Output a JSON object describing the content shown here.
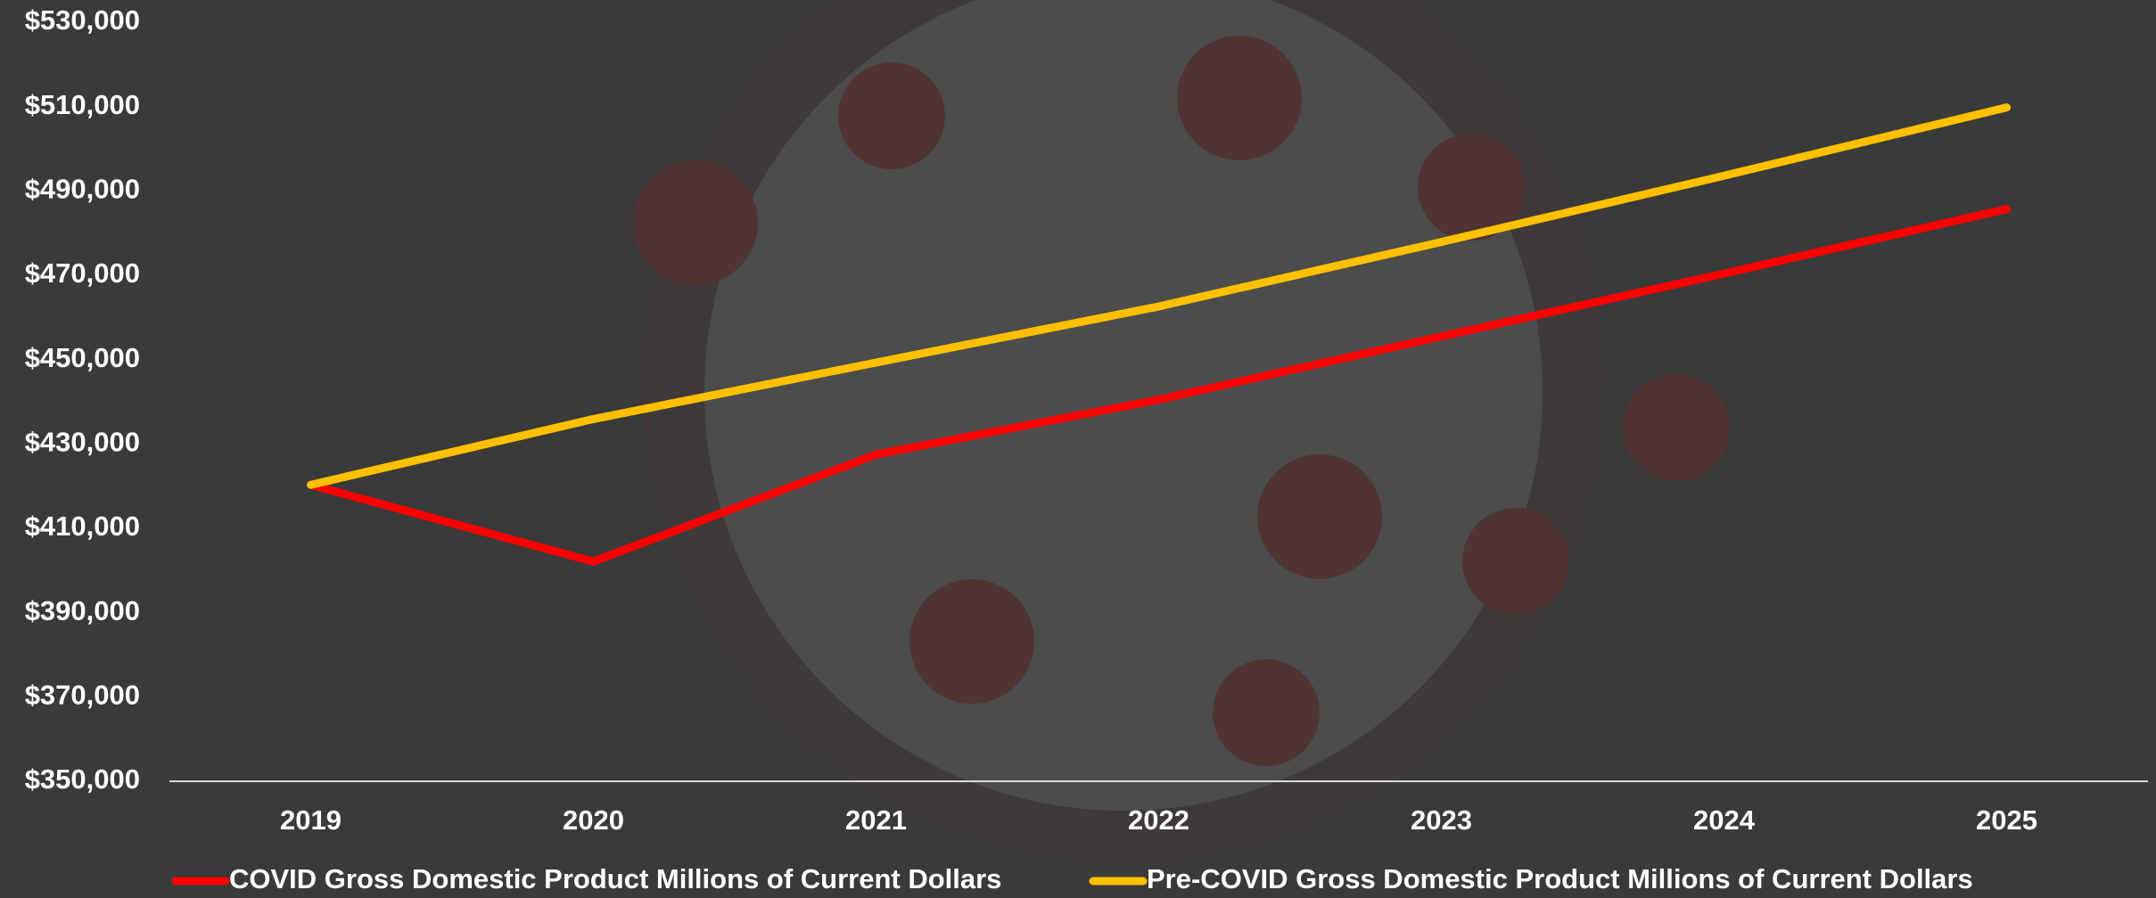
{
  "chart_data": {
    "type": "line",
    "categories": [
      "2019",
      "2020",
      "2021",
      "2022",
      "2023",
      "2024",
      "2025"
    ],
    "series": [
      {
        "name": "COVID Gross Domestic Product Millions of Current Dollars",
        "color": "#ff0000",
        "values": [
          420300,
          402100,
          427500,
          440500,
          455500,
          470400,
          485700
        ]
      },
      {
        "name": "Pre-COVID Gross Domestic Product Millions of Current Dollars",
        "color": "#ffc000",
        "values": [
          420300,
          435900,
          449300,
          462600,
          477900,
          493600,
          509800
        ]
      }
    ],
    "ylim": [
      350000,
      530000
    ],
    "yticks": [
      {
        "value": 350000,
        "label": "$350,000"
      },
      {
        "value": 370000,
        "label": "$370,000"
      },
      {
        "value": 390000,
        "label": "$390,000"
      },
      {
        "value": 410000,
        "label": "$410,000"
      },
      {
        "value": 430000,
        "label": "$430,000"
      },
      {
        "value": 450000,
        "label": "$450,000"
      },
      {
        "value": 470000,
        "label": "$470,000"
      },
      {
        "value": 490000,
        "label": "$490,000"
      },
      {
        "value": 510000,
        "label": "$510,000"
      },
      {
        "value": 530000,
        "label": "$530,000"
      }
    ],
    "grid": false,
    "legend": "bottom"
  }
}
